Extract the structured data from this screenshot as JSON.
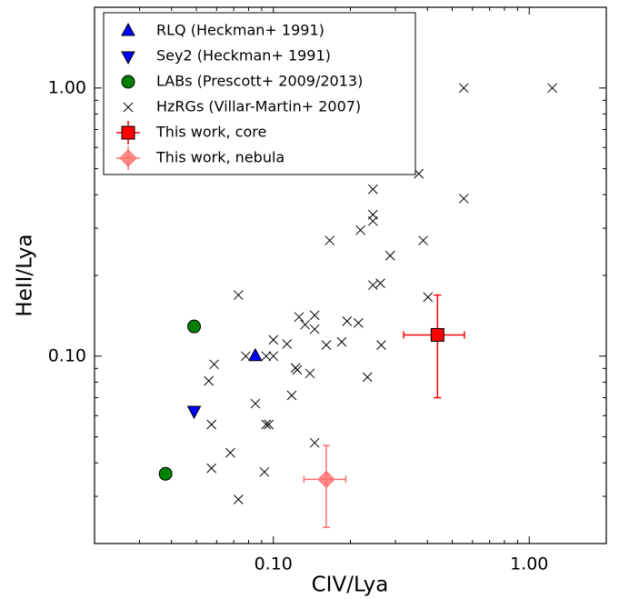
{
  "chart_data": {
    "type": "scatter",
    "xlabel": "CIV/Lya",
    "ylabel": "HeII/Lya",
    "xscale": "log",
    "yscale": "log",
    "xlim": [
      0.02,
      2
    ],
    "ylim": [
      0.02,
      2
    ],
    "xticks": [
      {
        "value": 0.1,
        "label": "0.10"
      },
      {
        "value": 1,
        "label": "1.00"
      }
    ],
    "yticks": [
      {
        "value": 0.1,
        "label": "0.10"
      },
      {
        "value": 1,
        "label": "1.00"
      }
    ],
    "xminorticks": [
      0.02,
      0.03,
      0.04,
      0.05,
      0.06,
      0.07,
      0.08,
      0.09,
      0.2,
      0.3,
      0.4,
      0.5,
      0.6,
      0.7,
      0.8,
      0.9,
      2
    ],
    "yminorticks": [
      0.02,
      0.03,
      0.04,
      0.05,
      0.06,
      0.07,
      0.08,
      0.09,
      0.2,
      0.3,
      0.4,
      0.5,
      0.6,
      0.7,
      0.8,
      0.9,
      2
    ],
    "legend": "upper left",
    "series": [
      {
        "name": "RLQ (Heckman+ 1991)",
        "color": "#0000ff",
        "marker": "triangle-up",
        "x": [
          0.085
        ],
        "y": [
          0.1
        ]
      },
      {
        "name": "Sey2 (Heckman+ 1991)",
        "color": "#0000ff",
        "marker": "triangle-down",
        "x": [
          0.049
        ],
        "y": [
          0.0625
        ]
      },
      {
        "name": "LABs (Prescott+ 2009/2013)",
        "color": "#008000",
        "marker": "circle",
        "x": [
          0.049,
          0.0379
        ],
        "y": [
          0.129,
          0.0364
        ]
      },
      {
        "name": "HzRGs (Villar-Martin+ 2007)",
        "color": "#000000",
        "marker": "cross",
        "x": [
          0.555,
          1.23,
          0.37,
          0.555,
          0.245,
          0.245,
          0.245,
          0.166,
          0.219,
          0.286,
          0.385,
          0.073,
          0.402,
          0.245,
          0.262,
          0.126,
          0.145,
          0.194,
          0.215,
          0.133,
          0.145,
          0.1,
          0.113,
          0.078,
          0.0937,
          0.1,
          0.185,
          0.161,
          0.264,
          0.122,
          0.124,
          0.139,
          0.0587,
          0.0559,
          0.233,
          0.118,
          0.085,
          0.0937,
          0.096,
          0.0573,
          0.0679,
          0.145,
          0.0922,
          0.0573,
          0.073
        ],
        "y": [
          1.0,
          1.0,
          0.479,
          0.387,
          0.419,
          0.337,
          0.319,
          0.27,
          0.295,
          0.237,
          0.27,
          0.169,
          0.166,
          0.184,
          0.187,
          0.14,
          0.142,
          0.135,
          0.133,
          0.131,
          0.126,
          0.115,
          0.111,
          0.1,
          0.1,
          0.1,
          0.113,
          0.11,
          0.11,
          0.0904,
          0.0889,
          0.0862,
          0.0932,
          0.0809,
          0.0835,
          0.0714,
          0.0665,
          0.0556,
          0.0556,
          0.0556,
          0.0436,
          0.0475,
          0.037,
          0.0382,
          0.0292
        ]
      },
      {
        "name": "This work, core",
        "color": "#ff0000",
        "marker": "square",
        "x": [
          0.438
        ],
        "y": [
          0.12
        ],
        "xerr_minus": [
          0.115
        ],
        "xerr_plus": [
          0.12
        ],
        "yerr_minus": [
          0.05
        ],
        "yerr_plus": [
          0.049
        ]
      },
      {
        "name": "This work, nebula",
        "color": "#ff6f6f",
        "marker": "diamond",
        "x": [
          0.161
        ],
        "y": [
          0.0347
        ],
        "xerr_minus": [
          0.0294
        ],
        "xerr_plus": [
          0.031
        ],
        "yerr_minus": [
          0.0117
        ],
        "yerr_plus": [
          0.0117
        ]
      }
    ]
  }
}
